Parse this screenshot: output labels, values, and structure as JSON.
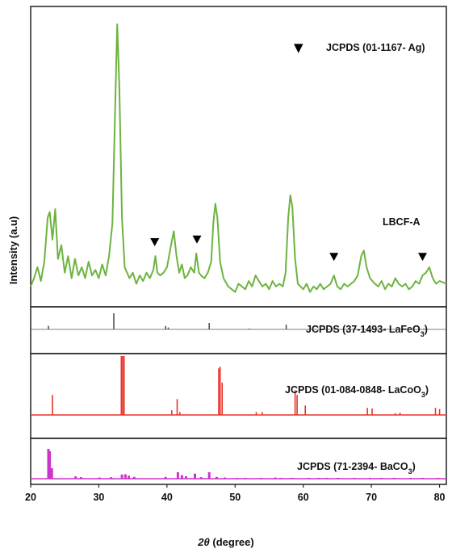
{
  "chart_data": {
    "type": "line",
    "ylabel": "Intensity (a.u)",
    "xlabel_symbol": "2θ",
    "xlabel_text": " (degree)",
    "xlim": [
      20,
      81
    ],
    "x_ticks": [
      20,
      30,
      40,
      50,
      60,
      70,
      80
    ],
    "panels": [
      {
        "id": "sample",
        "label": "LBCF-A",
        "color": "#6db33f",
        "baseline": 0.08,
        "points": [
          [
            20,
            0.05
          ],
          [
            20.5,
            0.08
          ],
          [
            21,
            0.12
          ],
          [
            21.5,
            0.07
          ],
          [
            22,
            0.14
          ],
          [
            22.5,
            0.3
          ],
          [
            22.8,
            0.32
          ],
          [
            23.2,
            0.22
          ],
          [
            23.6,
            0.33
          ],
          [
            24,
            0.15
          ],
          [
            24.5,
            0.2
          ],
          [
            25,
            0.1
          ],
          [
            25.5,
            0.16
          ],
          [
            26,
            0.08
          ],
          [
            26.5,
            0.15
          ],
          [
            27,
            0.09
          ],
          [
            27.5,
            0.12
          ],
          [
            28,
            0.08
          ],
          [
            28.5,
            0.14
          ],
          [
            29,
            0.09
          ],
          [
            29.5,
            0.11
          ],
          [
            30,
            0.08
          ],
          [
            30.5,
            0.13
          ],
          [
            31,
            0.09
          ],
          [
            31.5,
            0.16
          ],
          [
            32,
            0.28
          ],
          [
            32.4,
            0.7
          ],
          [
            32.7,
            1.0
          ],
          [
            33,
            0.78
          ],
          [
            33.4,
            0.3
          ],
          [
            33.8,
            0.12
          ],
          [
            34.5,
            0.08
          ],
          [
            35,
            0.1
          ],
          [
            35.5,
            0.06
          ],
          [
            36,
            0.09
          ],
          [
            36.5,
            0.07
          ],
          [
            37,
            0.1
          ],
          [
            37.5,
            0.08
          ],
          [
            38,
            0.11
          ],
          [
            38.3,
            0.16
          ],
          [
            38.6,
            0.1
          ],
          [
            39,
            0.09
          ],
          [
            39.5,
            0.1
          ],
          [
            40,
            0.12
          ],
          [
            40.6,
            0.2
          ],
          [
            41,
            0.25
          ],
          [
            41.4,
            0.16
          ],
          [
            41.8,
            0.1
          ],
          [
            42.2,
            0.13
          ],
          [
            42.6,
            0.08
          ],
          [
            43,
            0.09
          ],
          [
            43.5,
            0.12
          ],
          [
            44,
            0.1
          ],
          [
            44.3,
            0.17
          ],
          [
            44.7,
            0.1
          ],
          [
            45,
            0.09
          ],
          [
            45.5,
            0.08
          ],
          [
            46,
            0.1
          ],
          [
            46.5,
            0.14
          ],
          [
            46.8,
            0.28
          ],
          [
            47.1,
            0.35
          ],
          [
            47.4,
            0.3
          ],
          [
            47.8,
            0.14
          ],
          [
            48.3,
            0.08
          ],
          [
            49,
            0.05
          ],
          [
            49.5,
            0.04
          ],
          [
            50,
            0.03
          ],
          [
            50.5,
            0.06
          ],
          [
            51,
            0.05
          ],
          [
            51.5,
            0.04
          ],
          [
            52,
            0.07
          ],
          [
            52.5,
            0.05
          ],
          [
            53,
            0.09
          ],
          [
            53.5,
            0.07
          ],
          [
            54,
            0.05
          ],
          [
            54.5,
            0.06
          ],
          [
            55,
            0.04
          ],
          [
            55.5,
            0.07
          ],
          [
            56,
            0.05
          ],
          [
            56.5,
            0.06
          ],
          [
            57,
            0.05
          ],
          [
            57.4,
            0.1
          ],
          [
            57.8,
            0.3
          ],
          [
            58.1,
            0.38
          ],
          [
            58.4,
            0.34
          ],
          [
            58.8,
            0.15
          ],
          [
            59.2,
            0.06
          ],
          [
            60,
            0.04
          ],
          [
            60.5,
            0.06
          ],
          [
            61,
            0.03
          ],
          [
            61.5,
            0.05
          ],
          [
            62,
            0.04
          ],
          [
            62.5,
            0.06
          ],
          [
            63,
            0.04
          ],
          [
            63.5,
            0.05
          ],
          [
            64,
            0.06
          ],
          [
            64.5,
            0.09
          ],
          [
            65,
            0.05
          ],
          [
            65.5,
            0.04
          ],
          [
            66,
            0.06
          ],
          [
            66.5,
            0.05
          ],
          [
            67,
            0.06
          ],
          [
            67.5,
            0.07
          ],
          [
            68,
            0.09
          ],
          [
            68.5,
            0.16
          ],
          [
            68.9,
            0.18
          ],
          [
            69.3,
            0.12
          ],
          [
            69.8,
            0.08
          ],
          [
            70.5,
            0.06
          ],
          [
            71,
            0.05
          ],
          [
            71.5,
            0.07
          ],
          [
            72,
            0.04
          ],
          [
            72.5,
            0.06
          ],
          [
            73,
            0.05
          ],
          [
            73.5,
            0.08
          ],
          [
            74,
            0.06
          ],
          [
            74.5,
            0.05
          ],
          [
            75,
            0.06
          ],
          [
            75.5,
            0.04
          ],
          [
            76,
            0.05
          ],
          [
            76.5,
            0.07
          ],
          [
            77,
            0.06
          ],
          [
            77.5,
            0.09
          ],
          [
            78,
            0.1
          ],
          [
            78.5,
            0.12
          ],
          [
            79,
            0.08
          ],
          [
            79.5,
            0.06
          ],
          [
            80,
            0.07
          ],
          [
            81,
            0.06
          ]
        ],
        "markers": {
          "symbol": "▼",
          "label": "JCPDS (01-1167- Ag)",
          "positions": [
            38.2,
            44.4,
            64.5,
            77.5
          ]
        }
      },
      {
        "id": "lafeo3",
        "label_main": "JCPDS (37-1493- LaFeO",
        "label_sub": "3",
        "label_end": ")",
        "color": "#555555",
        "sticks": [
          [
            22.6,
            22
          ],
          [
            32.2,
            100
          ],
          [
            39.8,
            21
          ],
          [
            40.2,
            12
          ],
          [
            46.2,
            40
          ],
          [
            52.1,
            5
          ],
          [
            57.5,
            30
          ],
          [
            67.6,
            14
          ],
          [
            72,
            6
          ],
          [
            77,
            9
          ],
          [
            77.7,
            5
          ]
        ]
      },
      {
        "id": "lacoo3",
        "label_main": "JCPDS (01-084-0848- LaCoO",
        "label_sub": "3",
        "label_end": ")",
        "color": "#e8342a",
        "sticks": [
          [
            23.2,
            34
          ],
          [
            33.3,
            100
          ],
          [
            33.5,
            100
          ],
          [
            33.7,
            100
          ],
          [
            40.7,
            8
          ],
          [
            41.5,
            27
          ],
          [
            41.9,
            5
          ],
          [
            47.6,
            79
          ],
          [
            47.8,
            82
          ],
          [
            48.1,
            55
          ],
          [
            53.1,
            5
          ],
          [
            54,
            5
          ],
          [
            58.8,
            42
          ],
          [
            59.1,
            34
          ],
          [
            60.3,
            16
          ],
          [
            69.4,
            12
          ],
          [
            70.1,
            11
          ],
          [
            73.5,
            3
          ],
          [
            74.2,
            4
          ],
          [
            79.4,
            12
          ],
          [
            80,
            10
          ]
        ]
      },
      {
        "id": "baco3",
        "label_main": "JCPDS (71-2394- BaCO",
        "label_sub": "3",
        "label_end": ")",
        "color": "#cc33cc",
        "sticks": [
          [
            22.6,
            100
          ],
          [
            22.8,
            92
          ],
          [
            23.1,
            35
          ],
          [
            26.6,
            8
          ],
          [
            27.4,
            5
          ],
          [
            30.1,
            4
          ],
          [
            31.8,
            5
          ],
          [
            33.4,
            14
          ],
          [
            33.9,
            15
          ],
          [
            34.4,
            10
          ],
          [
            35.2,
            6
          ],
          [
            39.8,
            6
          ],
          [
            41.6,
            22
          ],
          [
            42.2,
            12
          ],
          [
            42.8,
            8
          ],
          [
            44.1,
            17
          ],
          [
            45,
            5
          ],
          [
            46.2,
            22
          ],
          [
            47.3,
            6
          ],
          [
            48.5,
            4
          ],
          [
            50.3,
            3
          ],
          [
            51.5,
            3
          ],
          [
            53.8,
            3
          ],
          [
            55.9,
            4
          ],
          [
            56.7,
            3
          ],
          [
            58.4,
            3
          ],
          [
            60.8,
            3
          ],
          [
            62.3,
            3
          ],
          [
            63.4,
            3
          ],
          [
            65.1,
            3
          ],
          [
            67.5,
            3
          ],
          [
            69.8,
            3
          ],
          [
            71.5,
            3
          ],
          [
            73.3,
            3
          ],
          [
            75.8,
            3
          ],
          [
            77.5,
            3
          ],
          [
            79.8,
            3
          ]
        ]
      }
    ]
  }
}
